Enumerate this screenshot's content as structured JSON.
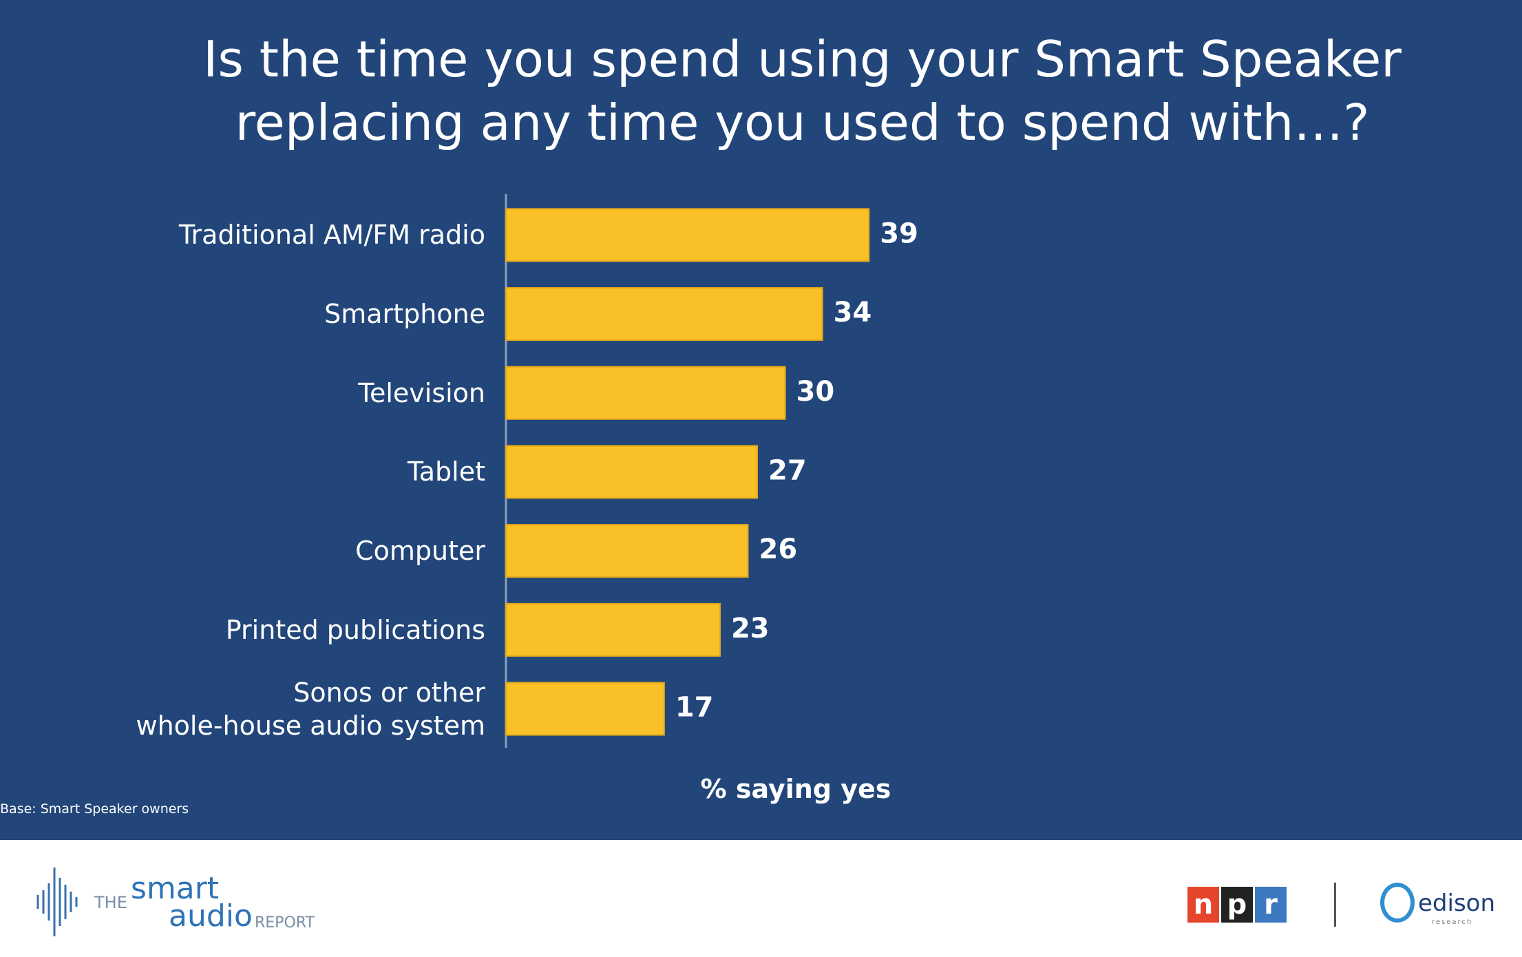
{
  "chart_data": {
    "type": "hbar",
    "title": "Is the time you spend using your Smart Speaker\nreplacing any time you used to spend with…?",
    "categories": [
      "Traditional AM/FM radio",
      "Smartphone",
      "Television",
      "Tablet",
      "Computer",
      "Printed publications",
      "Sonos or other\nwhole-house audio system"
    ],
    "values": [
      39,
      34,
      30,
      27,
      26,
      23,
      17
    ],
    "color": "#f9c027",
    "xlim": [
      0,
      100
    ],
    "xlabel": "% saying yes",
    "note": "Base: Smart Speaker owners"
  },
  "footer": {
    "left_logo": [
      "THE",
      "smart",
      "audio",
      "REPORT"
    ],
    "right_logos": [
      "n",
      "p",
      "r",
      "edison",
      "research"
    ]
  }
}
